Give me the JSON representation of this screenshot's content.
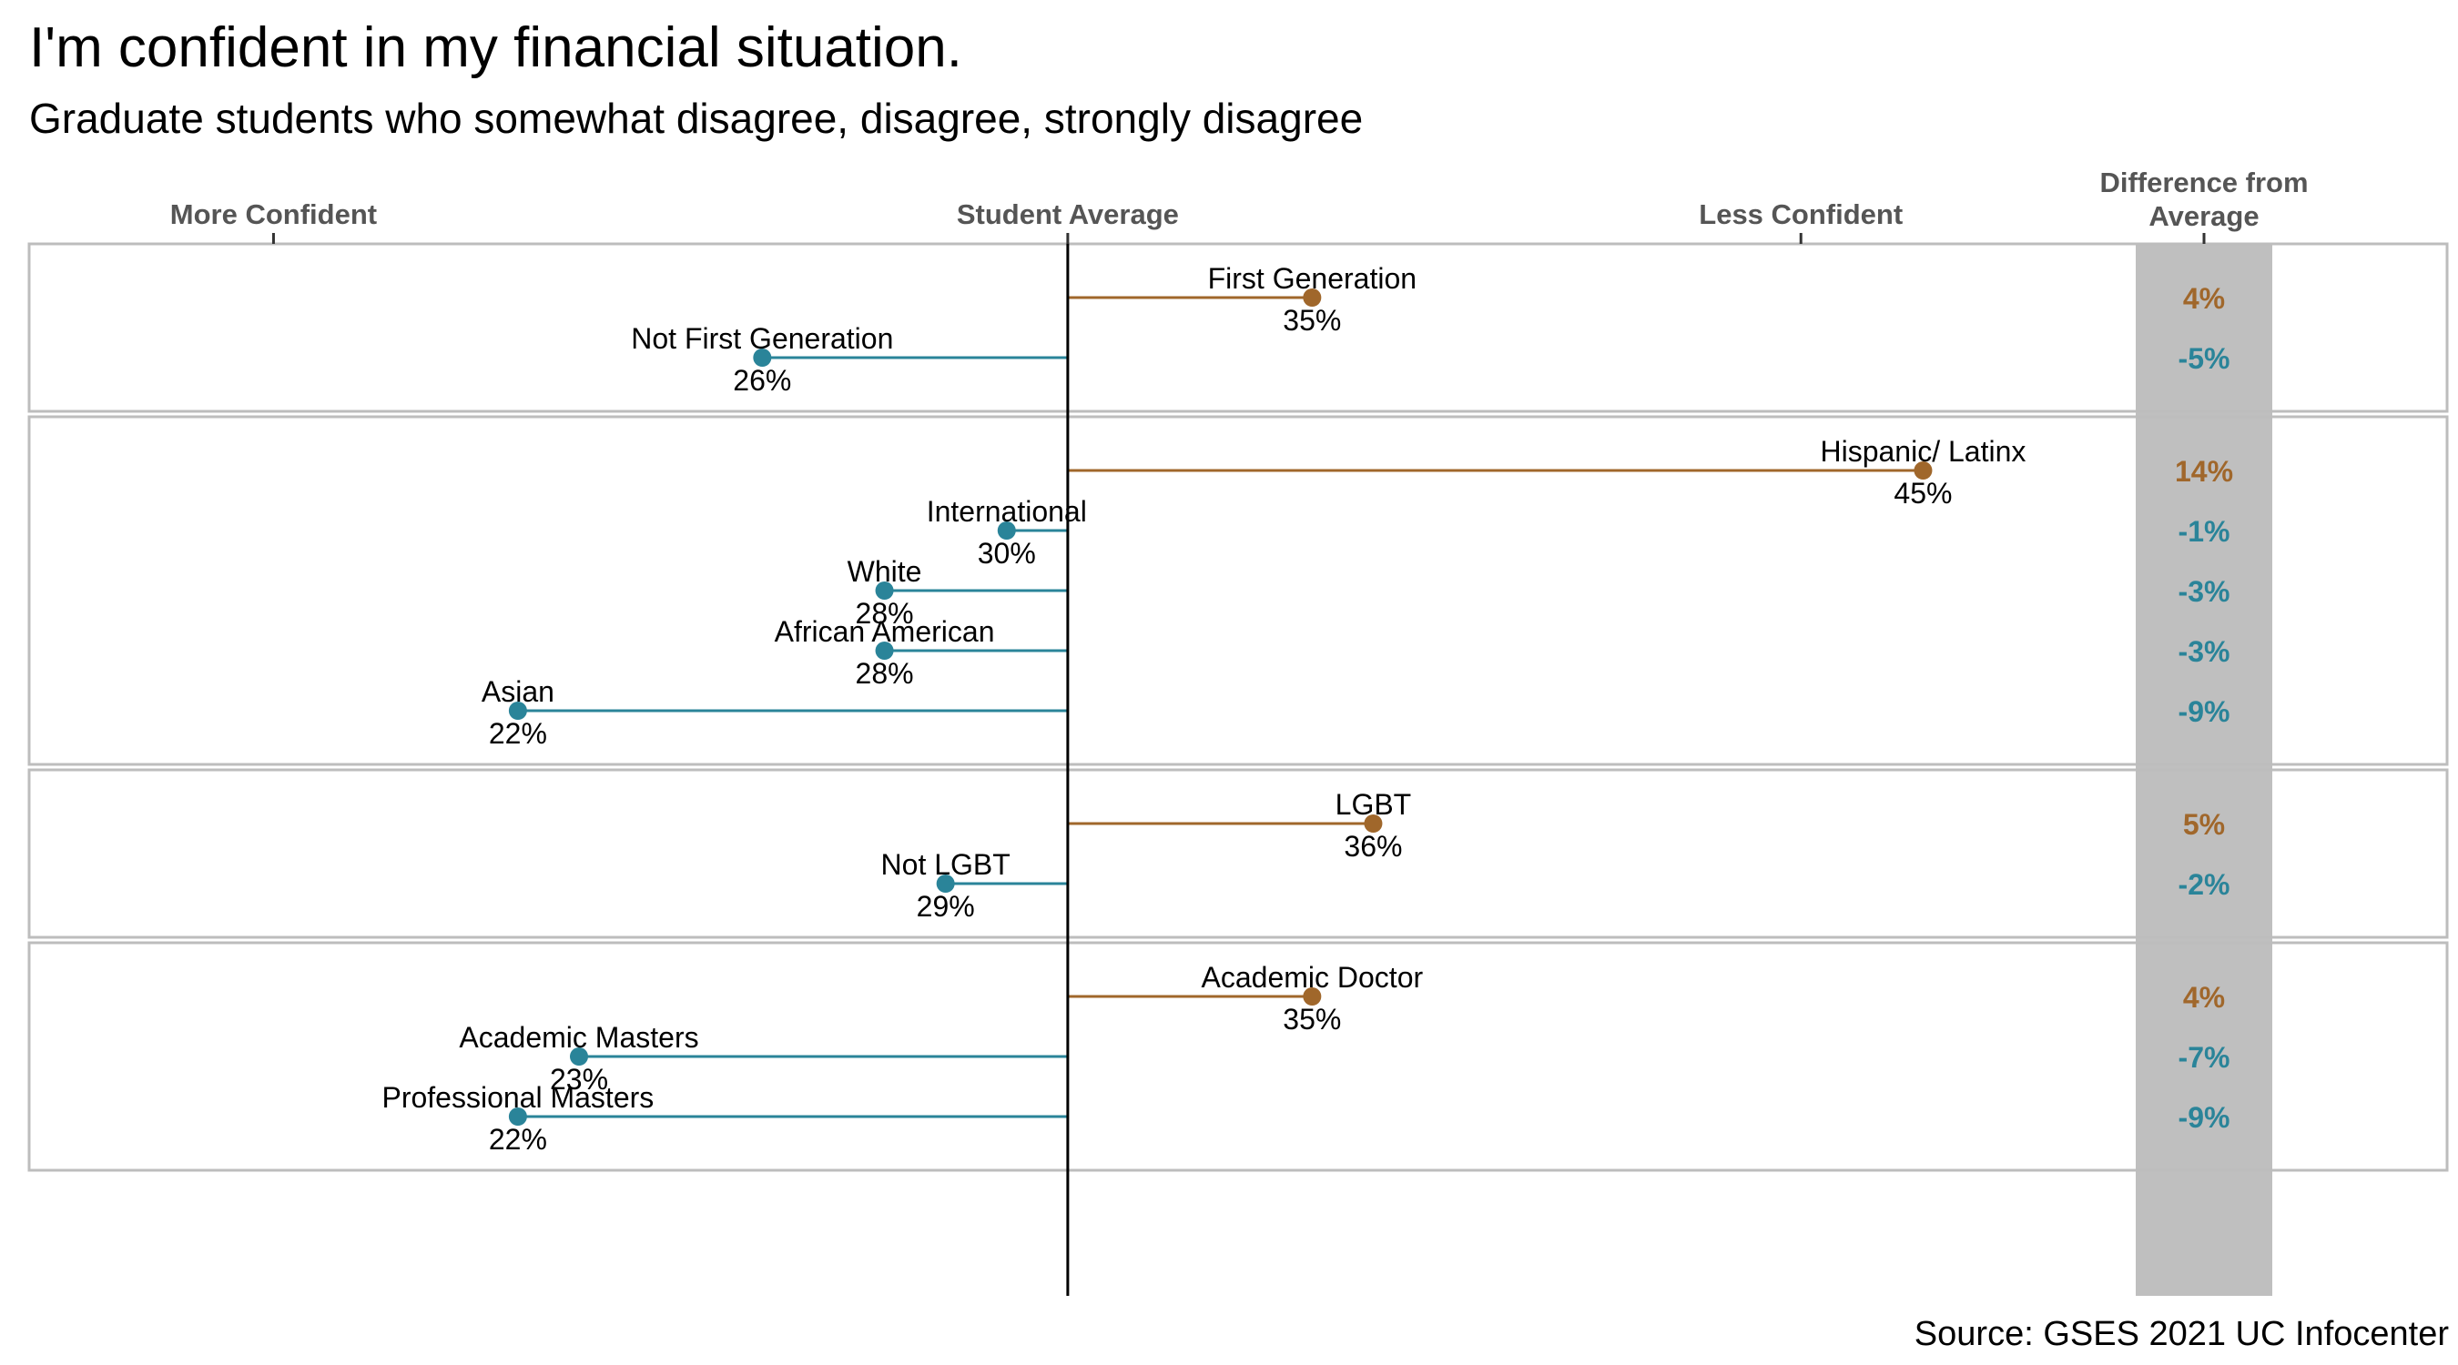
{
  "chart_data": {
    "type": "dot-plot",
    "title": "I'm confident in my financial situation.",
    "subtitle": "Graduate students who somewhat disagree, disagree, strongly disagree",
    "x_axis": {
      "range": [
        14,
        50
      ],
      "student_average": 31,
      "tick_labels": [
        {
          "label": "More Confident",
          "value": 18
        },
        {
          "label": "Student Average",
          "value": 31
        },
        {
          "label": "Less Confident",
          "value": 43
        }
      ]
    },
    "difference_header": "Difference from\nAverage",
    "colors": {
      "above": "#A0672B",
      "below": "#2A8499",
      "band": "#BFBFBF",
      "frame": "#BDBDBD",
      "center_line": "#000000"
    },
    "groups": [
      {
        "items": [
          {
            "label": "First Generation",
            "value": 35,
            "value_label": "35%",
            "diff": "4%",
            "direction": "above"
          },
          {
            "label": "Not First Generation",
            "value": 26,
            "value_label": "26%",
            "diff": "-5%",
            "direction": "below"
          }
        ]
      },
      {
        "items": [
          {
            "label": "Hispanic/ Latinx",
            "value": 45,
            "value_label": "45%",
            "diff": "14%",
            "direction": "above"
          },
          {
            "label": "International",
            "value": 30,
            "value_label": "30%",
            "diff": "-1%",
            "direction": "below"
          },
          {
            "label": "White",
            "value": 28,
            "value_label": "28%",
            "diff": "-3%",
            "direction": "below"
          },
          {
            "label": "African American",
            "value": 28,
            "value_label": "28%",
            "diff": "-3%",
            "direction": "below"
          },
          {
            "label": "Asian",
            "value": 22,
            "value_label": "22%",
            "diff": "-9%",
            "direction": "below"
          }
        ]
      },
      {
        "items": [
          {
            "label": "LGBT",
            "value": 36,
            "value_label": "36%",
            "diff": "5%",
            "direction": "above"
          },
          {
            "label": "Not LGBT",
            "value": 29,
            "value_label": "29%",
            "diff": "-2%",
            "direction": "below"
          }
        ]
      },
      {
        "items": [
          {
            "label": "Academic Doctor",
            "value": 35,
            "value_label": "35%",
            "diff": "4%",
            "direction": "above"
          },
          {
            "label": "Academic Masters",
            "value": 23,
            "value_label": "23%",
            "diff": "-7%",
            "direction": "below"
          },
          {
            "label": "Professional Masters",
            "value": 22,
            "value_label": "22%",
            "diff": "-9%",
            "direction": "below"
          }
        ]
      }
    ],
    "source": "Source: GSES 2021 UC Infocenter"
  }
}
